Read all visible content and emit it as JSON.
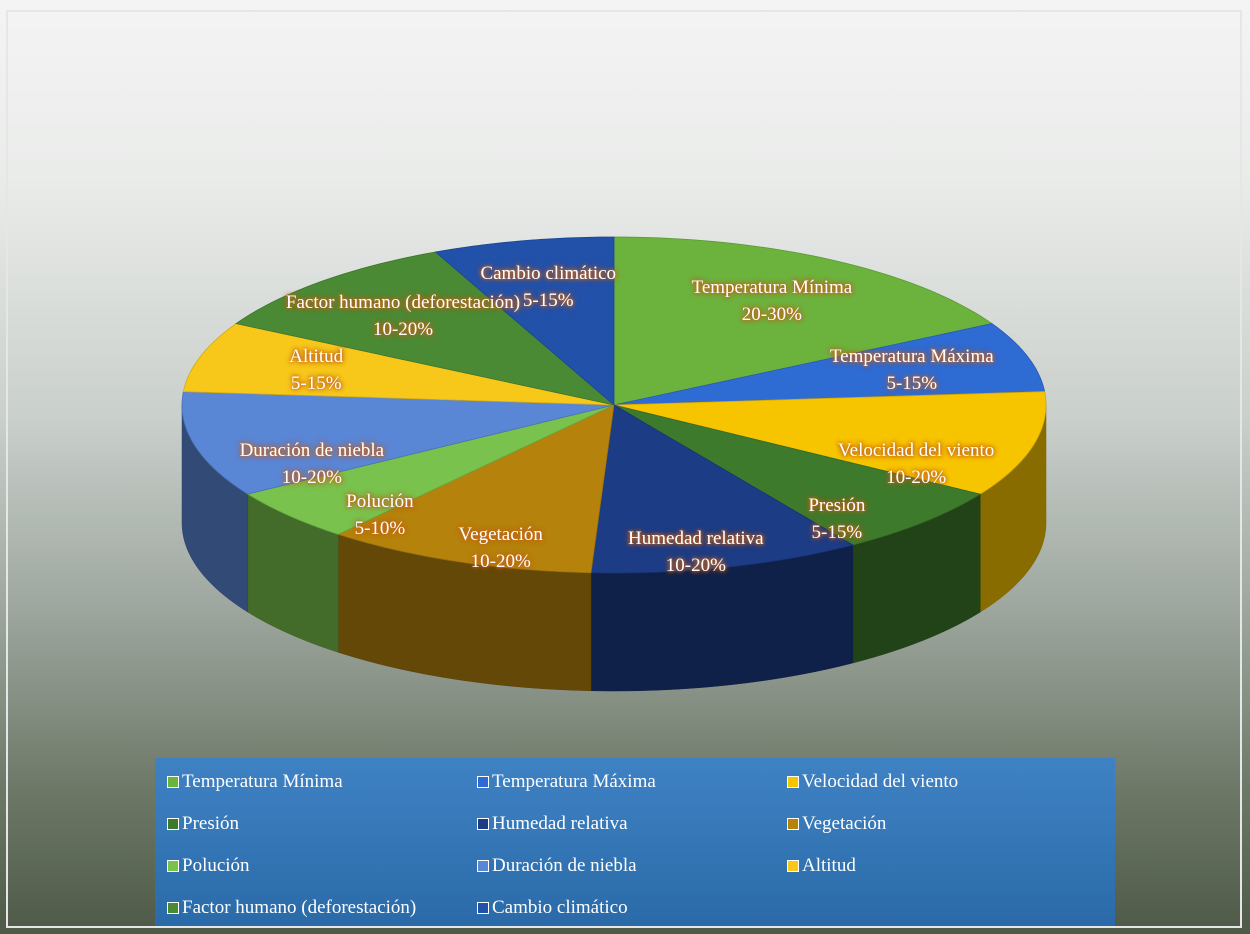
{
  "chart_data": {
    "type": "pie3d",
    "categories": [
      "Temperatura Mínima",
      "Temperatura Máxima",
      "Velocidad del viento",
      "Presión",
      "Humedad relativa",
      "Vegetación",
      "Polución",
      "Duración de niebla",
      "Altitud",
      "Factor humano (deforestación)",
      "Cambio climático"
    ],
    "values": [
      25,
      10,
      15,
      10,
      15,
      15,
      7.5,
      15,
      10,
      15,
      10
    ],
    "value_labels": [
      "20-30%",
      "5-15%",
      "10-20%",
      "5-15%",
      "10-20%",
      "10-20%",
      "5-10%",
      "10-20%",
      "5-15%",
      "10-20%",
      "5-15%"
    ],
    "colors": [
      "#6cb33e",
      "#2e6bd3",
      "#f7c500",
      "#3e7a2b",
      "#1c3c85",
      "#b5830c",
      "#79c24d",
      "#5a86d6",
      "#f7c81a",
      "#4b8a35",
      "#2251a9"
    ],
    "legend": "bottom"
  }
}
